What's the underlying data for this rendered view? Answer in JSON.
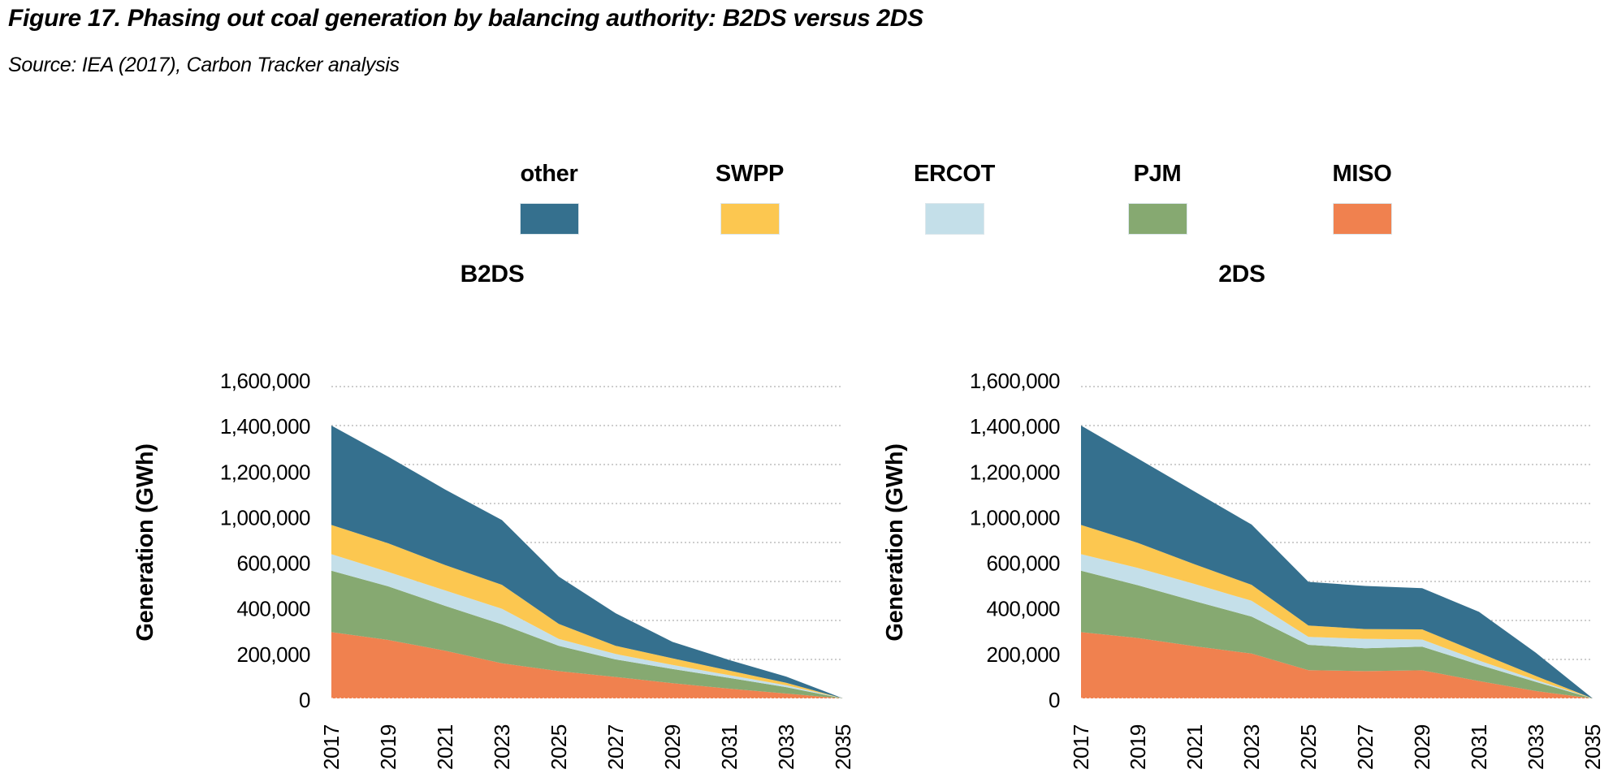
{
  "figure": {
    "title": "Figure 17. Phasing out coal generation by balancing authority: B2DS versus 2DS",
    "source": "Source: IEA (2017), Carbon Tracker analysis"
  },
  "colors": {
    "other": "#35708E",
    "SWPP": "#FCC750",
    "ERCOT": "#C4DFE9",
    "PJM": "#86A971",
    "MISO": "#F0814F",
    "gridline": "#b0b0b0",
    "baseline_dots": "#ffffff",
    "text": "#000000"
  },
  "legend": {
    "items": [
      {
        "label": "other",
        "color": "#35708E"
      },
      {
        "label": "SWPP",
        "color": "#FCC750"
      },
      {
        "label": "ERCOT",
        "color": "#C4DFE9"
      },
      {
        "label": "PJM",
        "color": "#86A971"
      },
      {
        "label": "MISO",
        "color": "#F0814F"
      }
    ]
  },
  "axes": {
    "y_axis_title": "Generation (GWh)",
    "y_tick_labels": [
      "1,600,000",
      "1,400,000",
      "1,200,000",
      "1,000,000",
      "600,000",
      "400,000",
      "200,000",
      "0"
    ],
    "y_gridline_values": [
      0,
      200000,
      400000,
      600000,
      800000,
      1000000,
      1200000,
      1400000,
      1600000
    ],
    "x_tick_labels": [
      "2017",
      "2019",
      "2021",
      "2023",
      "2025",
      "2027",
      "2029",
      "2031",
      "2033",
      "2035"
    ],
    "note_y_axis": "original figure omits the 800,000 label and spaces the 8 labels evenly while gridlines sit at every 200,000"
  },
  "chart_data": [
    {
      "type": "area",
      "stacked": true,
      "title": "B2DS",
      "xlabel": "",
      "ylabel": "Generation (GWh)",
      "ylim": [
        0,
        1600000
      ],
      "grid": "dotted-horizontal",
      "legend_position": "top",
      "x": [
        2017,
        2019,
        2021,
        2023,
        2025,
        2027,
        2029,
        2031,
        2033,
        2035
      ],
      "series": [
        {
          "name": "MISO",
          "color": "#F0814F",
          "values": [
            340000,
            300000,
            245000,
            180000,
            140000,
            110000,
            78000,
            50000,
            25000,
            0
          ]
        },
        {
          "name": "PJM",
          "color": "#86A971",
          "values": [
            315000,
            275000,
            230000,
            200000,
            130000,
            90000,
            73000,
            55000,
            33000,
            0
          ]
        },
        {
          "name": "ERCOT",
          "color": "#C4DFE9",
          "values": [
            85000,
            74000,
            79000,
            80000,
            35000,
            28000,
            21000,
            14000,
            10000,
            0
          ]
        },
        {
          "name": "SWPP",
          "color": "#FCC750",
          "values": [
            150000,
            147000,
            130000,
            123000,
            77000,
            42000,
            34000,
            24000,
            12000,
            0
          ]
        },
        {
          "name": "other",
          "color": "#35708E",
          "values": [
            510000,
            444000,
            388000,
            332000,
            243000,
            167000,
            84000,
            54000,
            32000,
            0
          ]
        }
      ],
      "totals": [
        1400000,
        1240000,
        1072000,
        915000,
        625000,
        437000,
        290000,
        197000,
        112000,
        0
      ]
    },
    {
      "type": "area",
      "stacked": true,
      "title": "2DS",
      "xlabel": "",
      "ylabel": "Generation (GWh)",
      "ylim": [
        0,
        1600000
      ],
      "grid": "dotted-horizontal",
      "legend_position": "top",
      "x": [
        2017,
        2019,
        2021,
        2023,
        2025,
        2027,
        2029,
        2031,
        2033,
        2035
      ],
      "series": [
        {
          "name": "MISO",
          "color": "#F0814F",
          "values": [
            340000,
            310000,
            268000,
            230000,
            145000,
            140000,
            144000,
            89000,
            38000,
            0
          ]
        },
        {
          "name": "PJM",
          "color": "#86A971",
          "values": [
            315000,
            271000,
            231000,
            190000,
            130000,
            117000,
            122000,
            84000,
            47000,
            0
          ]
        },
        {
          "name": "ERCOT",
          "color": "#C4DFE9",
          "values": [
            85000,
            88000,
            88000,
            81000,
            41000,
            49000,
            36000,
            21000,
            10000,
            0
          ]
        },
        {
          "name": "SWPP",
          "color": "#FCC750",
          "values": [
            150000,
            129000,
            101000,
            82000,
            58000,
            50000,
            52000,
            40000,
            20000,
            0
          ]
        },
        {
          "name": "other",
          "color": "#35708E",
          "values": [
            510000,
            433000,
            373000,
            309000,
            224000,
            221000,
            212000,
            210000,
            119000,
            0
          ]
        }
      ],
      "totals": [
        1400000,
        1231000,
        1061000,
        892000,
        598000,
        577000,
        566000,
        444000,
        234000,
        0
      ]
    }
  ]
}
